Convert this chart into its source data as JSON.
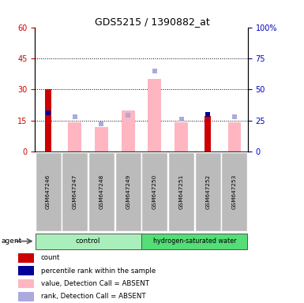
{
  "title": "GDS5215 / 1390882_at",
  "samples": [
    "GSM647246",
    "GSM647247",
    "GSM647248",
    "GSM647249",
    "GSM647250",
    "GSM647251",
    "GSM647252",
    "GSM647253"
  ],
  "bar_values_absent": [
    null,
    14,
    12,
    20,
    35,
    14,
    null,
    14
  ],
  "rank_absent": [
    null,
    28,
    22,
    29,
    65,
    26,
    null,
    28
  ],
  "count_values": [
    30,
    null,
    null,
    null,
    null,
    null,
    17,
    null
  ],
  "percentile_rank": [
    31,
    null,
    null,
    null,
    null,
    null,
    30,
    null
  ],
  "ylim_left": [
    0,
    60
  ],
  "ylim_right": [
    0,
    100
  ],
  "yticks_left": [
    0,
    15,
    30,
    45,
    60
  ],
  "yticks_right": [
    0,
    25,
    50,
    75,
    100
  ],
  "left_color": "#CC0000",
  "right_color": "#0000BB",
  "bar_absent_color": "#FFB6C1",
  "rank_absent_color": "#AAAADD",
  "count_color": "#CC0000",
  "percentile_color": "#000099",
  "ctrl_color": "#AAEEBB",
  "h2_color": "#55DD77",
  "sample_box_color": "#BBBBBB",
  "legend_items": [
    {
      "label": "count",
      "color": "#CC0000"
    },
    {
      "label": "percentile rank within the sample",
      "color": "#000099"
    },
    {
      "label": "value, Detection Call = ABSENT",
      "color": "#FFB6C1"
    },
    {
      "label": "rank, Detection Call = ABSENT",
      "color": "#AAAADD"
    }
  ]
}
